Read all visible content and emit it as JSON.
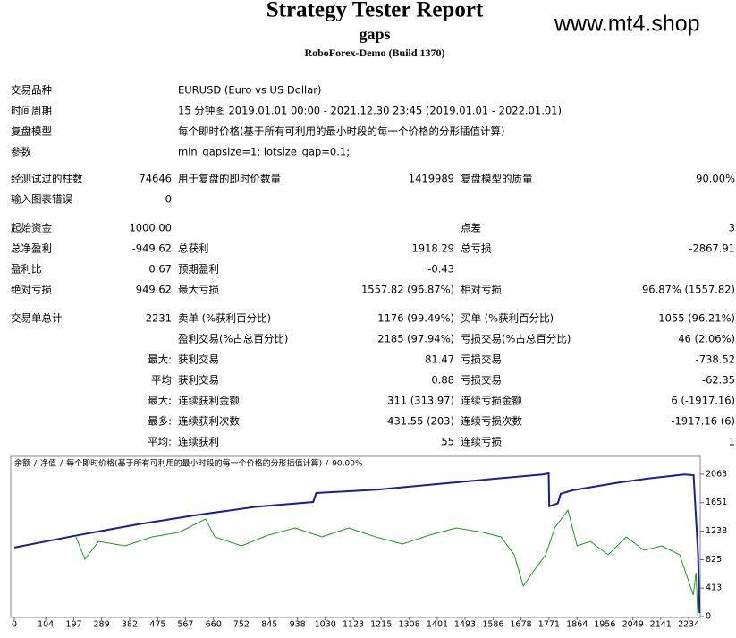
{
  "header": {
    "title": "Strategy Tester Report",
    "subtitle": "gaps",
    "build": "RoboForex-Demo (Build 1370)",
    "watermark": "www.mt4.shop"
  },
  "table": {
    "rows": [
      {
        "label": "交易品种",
        "value": "EURUSD (Euro vs US Dollar)"
      },
      {
        "label": "时间周期",
        "value": "15 分钟图 2019.01.01 00:00 - 2021.12.30 23:45 (2019.01.01 - 2022.01.01)"
      },
      {
        "label": "复盘模型",
        "value": "每个即时价格(基于所有可利用的最小时段的每一个价格的分形插值计算)"
      },
      {
        "label": "参数",
        "value": "min_gapsize=1; lotsize_gap=0.1;"
      },
      {
        "label": "经测试过的柱数",
        "v1": "74646",
        "l2": "用于复盘的即时价数量",
        "v2": "1419989",
        "l3": "复盘模型的质量",
        "v3": "90.00%"
      },
      {
        "label": "输入图表错误",
        "v1": "0"
      },
      {
        "label": "起始资金",
        "v1": "1000.00",
        "l3": "点差",
        "v3": "3"
      },
      {
        "label": "总净盈利",
        "v1": "-949.62",
        "l2": "总获利",
        "v2": "1918.29",
        "l3": "总亏损",
        "v3": "-2867.91"
      },
      {
        "label": "盈利比",
        "v1": "0.67",
        "l2": "预期盈利",
        "v2": "-0.43"
      },
      {
        "label": "绝对亏损",
        "v1": "949.62",
        "l2": "最大亏损",
        "v2": "1557.82 (96.87%)",
        "l3": "相对亏损",
        "v3": "96.87% (1557.82)"
      },
      {
        "label": "交易单总计",
        "v1": "2231",
        "l2": "卖单 (%获利百分比)",
        "v2": "1176 (99.49%)",
        "l3": "买单 (%获利百分比)",
        "v3": "1055 (96.21%)"
      },
      {
        "l2": "盈利交易(%占总百分比)",
        "v2": "2185 (97.94%)",
        "l3": "亏损交易(%占总百分比)",
        "v3": "46 (2.06%)"
      },
      {
        "v1": "最大:",
        "l2": "获利交易",
        "v2": "81.47",
        "l3": "亏损交易",
        "v3": "-738.52"
      },
      {
        "v1": "平均",
        "l2": "获利交易",
        "v2": "0.88",
        "l3": "亏损交易",
        "v3": "-62.35"
      },
      {
        "v1": "最大:",
        "l2": "连续获利金额",
        "v2": "311 (313.97)",
        "l3": "连续亏损金额",
        "v3": "6 (-1917.16)"
      },
      {
        "v1": "最多:",
        "l2": "连续获利次数",
        "v2": "431.55 (203)",
        "l3": "连续亏损次数",
        "v3": "-1917.16 (6)"
      },
      {
        "v1": "平均:",
        "l2": "连续获利",
        "v2": "55",
        "l3": "连续亏损",
        "v3": "1"
      }
    ]
  },
  "chart_data": {
    "type": "line",
    "legend_separator": "/",
    "model_note": "每个即时价格(基于所有可利用的最小时段的每一个价格的分形插值计算)",
    "quality": "90.00%",
    "xlim": [
      0,
      2272
    ],
    "ylim": [
      0,
      2322
    ],
    "xticks": [
      0,
      104,
      197,
      289,
      382,
      475,
      567,
      660,
      752,
      845,
      938,
      1030,
      1123,
      1215,
      1308,
      1401,
      1493,
      1586,
      1678,
      1771,
      1864,
      1956,
      2049,
      2141,
      2234
    ],
    "yticks": [
      0,
      413,
      825,
      1238,
      1651,
      2063
    ],
    "series": [
      {
        "name": "余额",
        "color": "#1c1ca0",
        "x": [
          0,
          200,
          400,
          600,
          800,
          990,
          1000,
          1200,
          1400,
          1600,
          1750,
          1770,
          1772,
          1800,
          1810,
          1850,
          2000,
          2100,
          2220,
          2250,
          2252,
          2265,
          2270
        ],
        "values": [
          1000,
          1170,
          1330,
          1470,
          1590,
          1660,
          1790,
          1840,
          1920,
          2000,
          2060,
          2075,
          1600,
          1640,
          1780,
          1830,
          1940,
          2000,
          2060,
          2050,
          1900,
          900,
          50
        ]
      },
      {
        "name": "净值",
        "color": "#10a010",
        "x": [
          204,
          234,
          279,
          367,
          456,
          545,
          634,
          664,
          753,
          841,
          930,
          1019,
          1108,
          1197,
          1286,
          1375,
          1464,
          1553,
          1612,
          1656,
          1686,
          1716,
          1760,
          1790,
          1834,
          1864,
          1908,
          1967,
          2027,
          2086,
          2145,
          2204,
          2234,
          2249,
          2258,
          2264
        ],
        "values": [
          1154,
          830,
          1090,
          1025,
          1154,
          1219,
          1414,
          1154,
          1025,
          1180,
          1284,
          1154,
          1284,
          1154,
          1051,
          1180,
          1284,
          1219,
          1154,
          895,
          441,
          636,
          895,
          1284,
          1543,
          1025,
          1090,
          895,
          1154,
          960,
          1025,
          895,
          506,
          311,
          636,
          13
        ]
      }
    ]
  }
}
